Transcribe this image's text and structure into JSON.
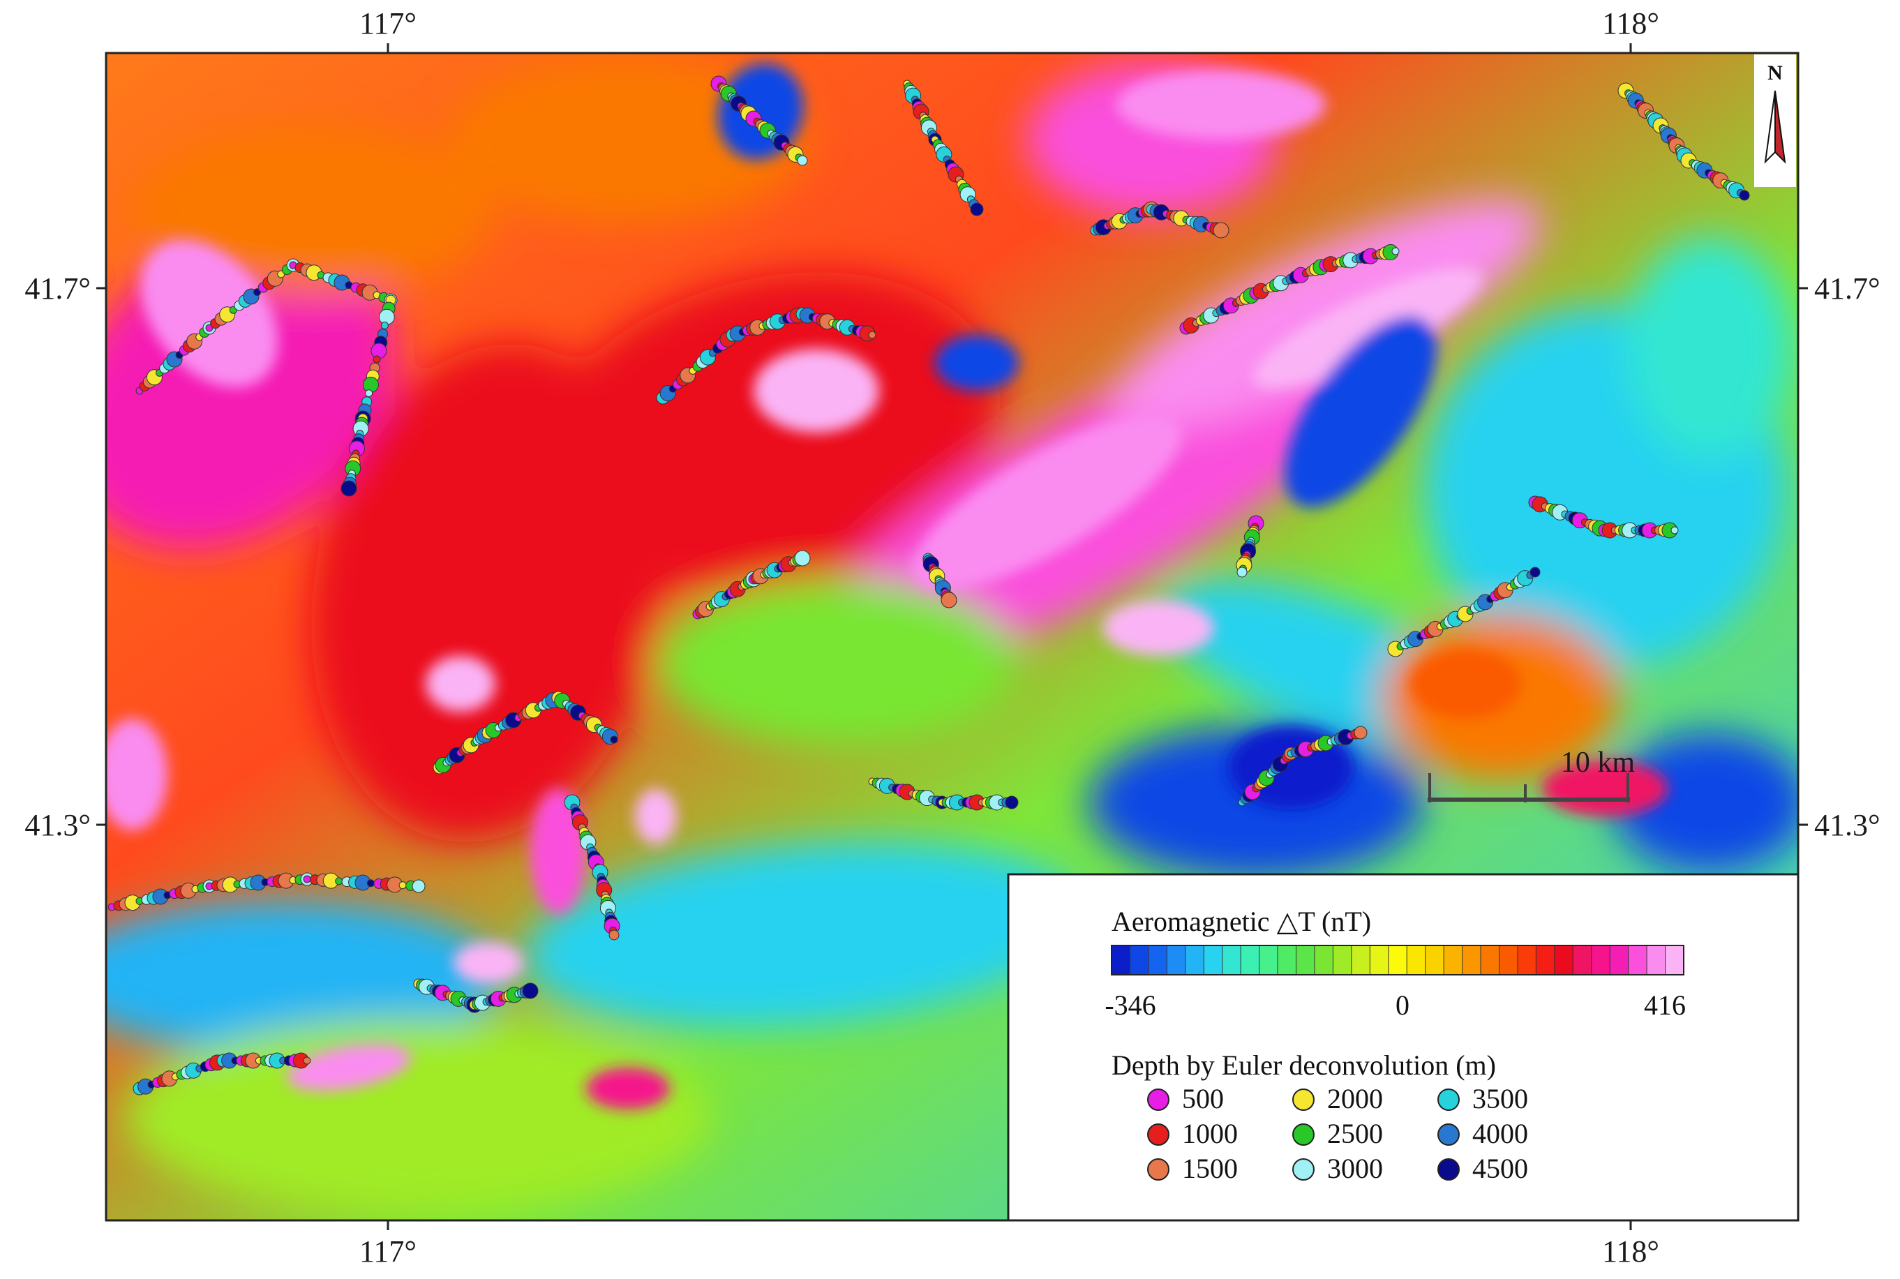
{
  "map": {
    "lon_labels": [
      "117°",
      "118°"
    ],
    "lat_labels": [
      "41.7°",
      "41.3°"
    ],
    "north_label": "N",
    "scale_label": "10 km"
  },
  "legend": {
    "anomaly_title": "Aeromagnetic △T (nT)",
    "colorbar_ticks": [
      "-346",
      "0",
      "416"
    ],
    "colorbar_colors": [
      "#0a1ecc",
      "#0f46e6",
      "#1464f0",
      "#1e8cf5",
      "#23b4f5",
      "#28d2f0",
      "#32e6d2",
      "#3cf0b4",
      "#46f08c",
      "#50eb64",
      "#5ae646",
      "#78e632",
      "#a0eb28",
      "#c8f01e",
      "#e6f514",
      "#fafa0a",
      "#fae600",
      "#fad200",
      "#fab400",
      "#fa9600",
      "#fa7800",
      "#fa5a00",
      "#fa3c0a",
      "#f51e14",
      "#eb0a1e",
      "#f01464",
      "#f5148c",
      "#f51eb4",
      "#fa50dc",
      "#fa8cf0",
      "#fab4f5"
    ],
    "depth_title": "Depth by Euler deconvolution (m)",
    "depth_classes": [
      {
        "label": "500",
        "color": "#e61ee6"
      },
      {
        "label": "1000",
        "color": "#e61e1e"
      },
      {
        "label": "1500",
        "color": "#e6784b"
      },
      {
        "label": "2000",
        "color": "#f5e632"
      },
      {
        "label": "2500",
        "color": "#28c828"
      },
      {
        "label": "3000",
        "color": "#a0f0f5"
      },
      {
        "label": "3500",
        "color": "#28d2dc"
      },
      {
        "label": "4000",
        "color": "#2878d2"
      },
      {
        "label": "4500",
        "color": "#0a0a8c"
      }
    ]
  }
}
